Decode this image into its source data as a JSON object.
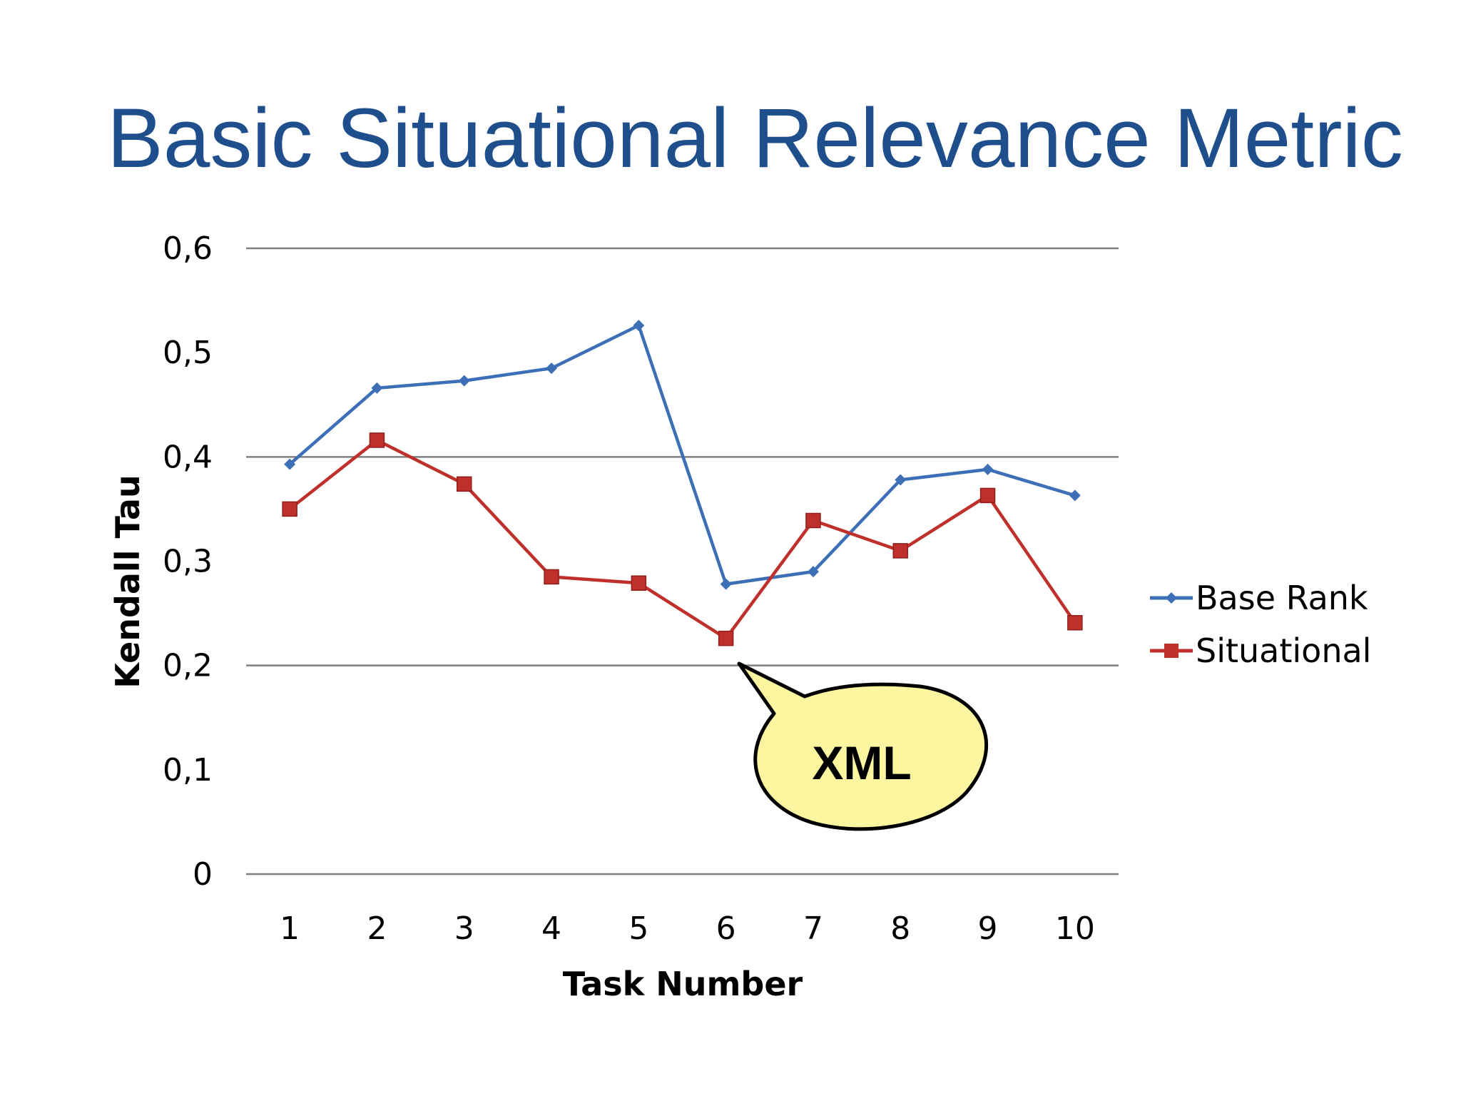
{
  "slide": {
    "title": "Basic Situational Relevance Metric"
  },
  "chart_data": {
    "type": "line",
    "x": [
      "1",
      "2",
      "3",
      "4",
      "5",
      "6",
      "7",
      "8",
      "9",
      "10"
    ],
    "series": [
      {
        "name": "Base Rank",
        "color": "#3d6fb6",
        "marker": "diamond",
        "values": [
          0.393,
          0.466,
          0.473,
          0.485,
          0.526,
          0.278,
          0.29,
          0.378,
          0.388,
          0.363
        ]
      },
      {
        "name": "Situational",
        "color": "#c0302b",
        "marker": "square",
        "values": [
          0.35,
          0.416,
          0.374,
          0.285,
          0.279,
          0.226,
          0.339,
          0.31,
          0.363,
          0.241
        ]
      }
    ],
    "xlabel": "Task Number",
    "ylabel": "Kendall Tau",
    "ylim": [
      0,
      0.6
    ],
    "yticks": [
      {
        "value": 0,
        "label": "0"
      },
      {
        "value": 0.1,
        "label": "0,1"
      },
      {
        "value": 0.2,
        "label": "0,2"
      },
      {
        "value": 0.3,
        "label": "0,3"
      },
      {
        "value": 0.4,
        "label": "0,4"
      },
      {
        "value": 0.5,
        "label": "0,5"
      },
      {
        "value": 0.6,
        "label": "0,6"
      }
    ],
    "gridlines": [
      0,
      0.2,
      0.4,
      0.6
    ],
    "legend_position": "right",
    "annotation": {
      "text": "XML",
      "points_to_task": "6",
      "fill": "#fdf6a0"
    }
  }
}
